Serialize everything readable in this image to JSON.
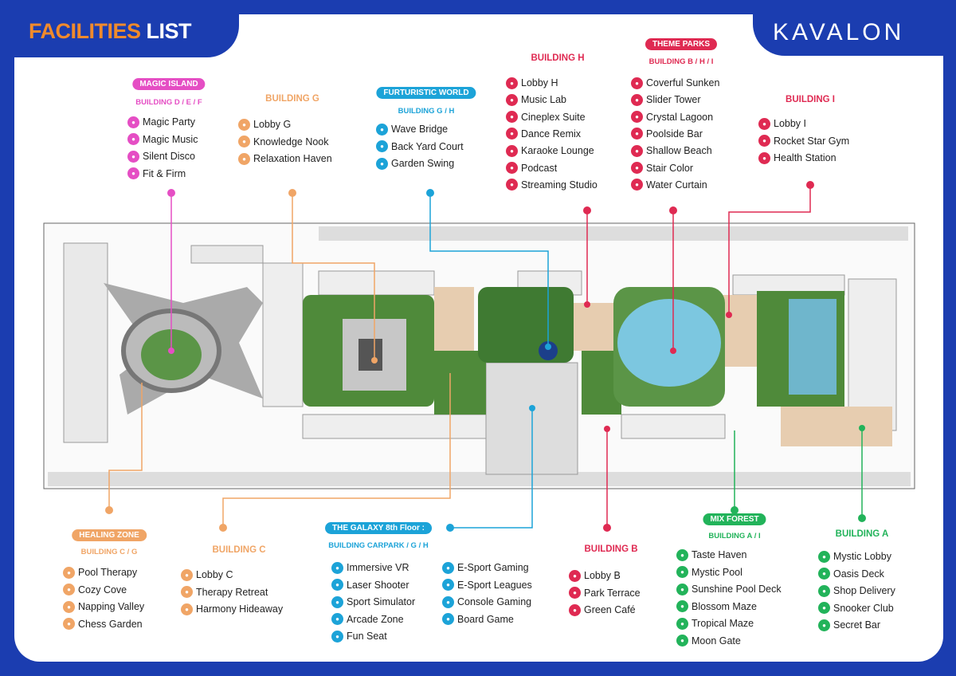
{
  "header": {
    "title_part1": "FACILITIES",
    "title_part2": "LIST",
    "brand": "KAVALON"
  },
  "colors": {
    "background": "#1b3db0",
    "pink": "#e54ec4",
    "orange": "#f0a566",
    "cyan": "#1ca3d8",
    "red": "#df2a52",
    "green": "#22b35a",
    "title_orange": "#f08a2c"
  },
  "groups": [
    {
      "id": "magic",
      "badge": "MAGIC ISLAND",
      "title": "",
      "subtitle": "BUILDING D / E / F",
      "color": "#e54ec4",
      "items": [
        "Magic Party",
        "Magic Music",
        "Silent Disco",
        "Fit & Firm"
      ]
    },
    {
      "id": "bldg_g",
      "badge": "",
      "title": "BUILDING G",
      "subtitle": "",
      "color": "#f0a566",
      "items": [
        "Lobby G",
        "Knowledge Nook",
        "Relaxation Haven"
      ]
    },
    {
      "id": "futuristic",
      "badge": "FURTURISTIC WORLD",
      "title": "",
      "subtitle": "BUILDING G / H",
      "color": "#1ca3d8",
      "items": [
        "Wave Bridge",
        "Back Yard Court",
        "Garden Swing"
      ]
    },
    {
      "id": "bldg_h",
      "badge": "",
      "title": "BUILDING H",
      "subtitle": "",
      "color": "#df2a52",
      "items": [
        "Lobby H",
        "Music Lab",
        "Cineplex Suite",
        "Dance Remix",
        "Karaoke Lounge",
        "Podcast",
        "Streaming Studio"
      ]
    },
    {
      "id": "theme",
      "badge": "THEME PARKS",
      "title": "",
      "subtitle": "BUILDING B / H / I",
      "color": "#df2a52",
      "items": [
        "Coverful Sunken",
        "Slider Tower",
        "Crystal Lagoon",
        "Poolside Bar",
        "Shallow Beach",
        "Stair Color",
        "Water Curtain"
      ]
    },
    {
      "id": "bldg_i",
      "badge": "",
      "title": "BUILDING I",
      "subtitle": "",
      "color": "#df2a52",
      "items": [
        "Lobby I",
        "Rocket Star Gym",
        "Health Station"
      ]
    },
    {
      "id": "healing",
      "badge": "HEALING ZONE",
      "title": "",
      "subtitle": "BUILDING C / G",
      "color": "#f0a566",
      "items": [
        "Pool Therapy",
        "Cozy Cove",
        "Napping Valley",
        "Chess Garden"
      ]
    },
    {
      "id": "bldg_c",
      "badge": "",
      "title": "BUILDING C",
      "subtitle": "",
      "color": "#f0a566",
      "items": [
        "Lobby C",
        "Therapy Retreat",
        "Harmony Hideaway"
      ]
    },
    {
      "id": "galaxy",
      "badge": "THE GALAXY 8th Floor :",
      "title": "",
      "subtitle": "BUILDING CARPARK / G / H",
      "color": "#1ca3d8",
      "items": [
        "Immersive VR",
        "Laser Shooter",
        "Sport Simulator",
        "Arcade Zone",
        "Fun Seat",
        "E-Sport Gaming",
        "E-Sport Leagues",
        "Console Gaming",
        "Board Game"
      ]
    },
    {
      "id": "bldg_b",
      "badge": "",
      "title": "BUILDING B",
      "subtitle": "",
      "color": "#df2a52",
      "items": [
        "Lobby B",
        "Park Terrace",
        "Green Café"
      ]
    },
    {
      "id": "mixforest",
      "badge": "MIX FOREST",
      "title": "",
      "subtitle": "BUILDING A / I",
      "color": "#22b35a",
      "items": [
        "Taste Haven",
        "Mystic Pool",
        "Sunshine Pool Deck",
        "Blossom Maze",
        "Tropical Maze",
        "Moon Gate"
      ]
    },
    {
      "id": "bldg_a",
      "badge": "",
      "title": "BUILDING A",
      "subtitle": "",
      "color": "#22b35a",
      "items": [
        "Mystic Lobby",
        "Oasis Deck",
        "Shop Delivery",
        "Snooker Club",
        "Secret Bar"
      ]
    }
  ]
}
